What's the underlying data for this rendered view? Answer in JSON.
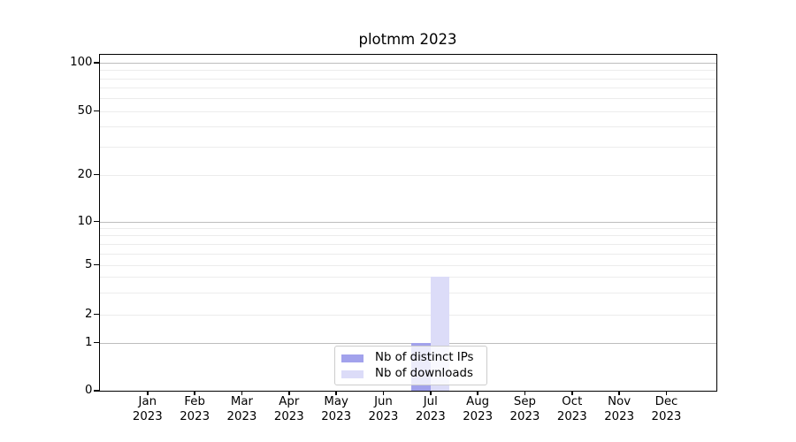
{
  "window": {
    "title": "plotmm 2023"
  },
  "chart_data": {
    "type": "bar",
    "title": "plotmm 2023",
    "categories": [
      {
        "month": "Jan",
        "year": "2023"
      },
      {
        "month": "Feb",
        "year": "2023"
      },
      {
        "month": "Mar",
        "year": "2023"
      },
      {
        "month": "Apr",
        "year": "2023"
      },
      {
        "month": "May",
        "year": "2023"
      },
      {
        "month": "Jun",
        "year": "2023"
      },
      {
        "month": "Jul",
        "year": "2023"
      },
      {
        "month": "Aug",
        "year": "2023"
      },
      {
        "month": "Sep",
        "year": "2023"
      },
      {
        "month": "Oct",
        "year": "2023"
      },
      {
        "month": "Nov",
        "year": "2023"
      },
      {
        "month": "Dec",
        "year": "2023"
      }
    ],
    "series": [
      {
        "name": "Nb of distinct IPs",
        "color": "#a2a2ec",
        "values": [
          0,
          0,
          0,
          0,
          0,
          0,
          1,
          0,
          0,
          0,
          0,
          0
        ]
      },
      {
        "name": "Nb of downloads",
        "color": "#dcdcf8",
        "values": [
          0,
          0,
          0,
          0,
          0,
          0,
          4,
          0,
          0,
          0,
          0,
          0
        ]
      }
    ],
    "y_axis": {
      "scale": "log",
      "tick_values": [
        100,
        50,
        20,
        10,
        5,
        2,
        1,
        0
      ],
      "tick_labels": [
        "100",
        "50",
        "20",
        "10",
        "5",
        "2",
        "1",
        "0"
      ],
      "major_gridlines": [
        1,
        10,
        100
      ],
      "minor_gridlines": [
        2,
        3,
        4,
        5,
        6,
        7,
        8,
        9,
        20,
        30,
        40,
        50,
        60,
        70,
        80,
        90
      ],
      "ylim": [
        0,
        110
      ]
    },
    "x_axis": {
      "label": ""
    },
    "legend": {
      "position": "bottom-center",
      "entries": [
        "Nb of distinct IPs",
        "Nb of downloads"
      ]
    },
    "grid": true
  }
}
